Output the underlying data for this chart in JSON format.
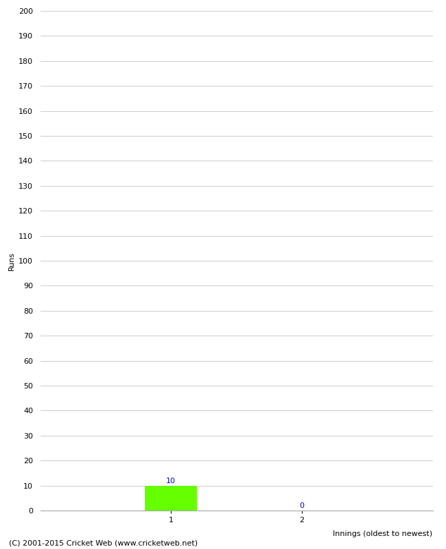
{
  "xlabel": "Innings (oldest to newest)",
  "ylabel": "Runs",
  "categories": [
    1,
    2
  ],
  "values": [
    10,
    0
  ],
  "bar_colors": [
    "#66ff00",
    "#66ff00"
  ],
  "value_labels": [
    10,
    0
  ],
  "ylim": [
    0,
    200
  ],
  "ytick_step": 10,
  "bar_width": 0.4,
  "background_color": "#ffffff",
  "grid_color": "#cccccc",
  "label_color": "#0000cc",
  "footer": "(C) 2001-2015 Cricket Web (www.cricketweb.net)",
  "label_fontsize": 8,
  "footer_fontsize": 8,
  "ylabel_fontsize": 8,
  "xlabel_fontsize": 8,
  "tick_fontsize": 8
}
